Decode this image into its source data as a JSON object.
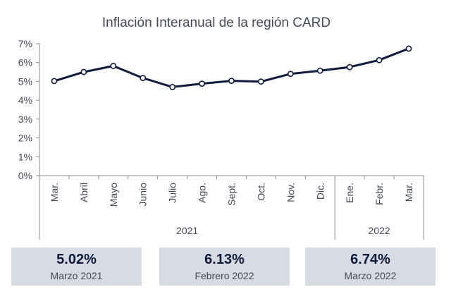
{
  "chart_data": {
    "type": "line",
    "title": "Inflación Interanual de la región CARD",
    "categories": [
      "Mar.",
      "Abril",
      "Mayo",
      "Junio",
      "Julio",
      "Ago.",
      "Sept.",
      "Oct.",
      "Nov.",
      "Dic.",
      "Ene.",
      "Febr.",
      "Mar."
    ],
    "year_groups": [
      {
        "label": "2021",
        "count": 10
      },
      {
        "label": "2022",
        "count": 3
      }
    ],
    "series": [
      {
        "values": [
          5.02,
          5.5,
          5.82,
          5.18,
          4.7,
          4.88,
          5.03,
          4.99,
          5.4,
          5.57,
          5.76,
          6.13,
          6.74
        ]
      }
    ],
    "y_ticks": [
      "0%",
      "1%",
      "2%",
      "3%",
      "4%",
      "5%",
      "6%",
      "7%"
    ],
    "ylim": [
      0,
      7
    ],
    "grid": false,
    "line_color": "#0f1b3d",
    "marker_fill": "#ffffff"
  },
  "kpis": [
    {
      "value": "5.02%",
      "label": "Marzo 2021"
    },
    {
      "value": "6.13%",
      "label": "Febrero 2022"
    },
    {
      "value": "6.74%",
      "label": "Marzo 2022"
    }
  ]
}
